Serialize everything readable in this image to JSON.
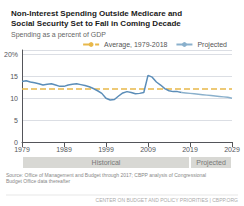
{
  "chart_data": {
    "type": "line",
    "title": "Non-Interest Spending Outside Medicare and\nSocial Security Set to Fall in Coming Decade",
    "subtitle": "Spending as a percent of GDP",
    "source": "Source: Office of Management and Budget through 2017; CBPP analysis of Congressional\nBudget Office data thereafter",
    "footer": "CENTER ON BUDGET AND POLICY PRIORITIES | CBPP.ORG",
    "series": [
      {
        "color": "#5b8db8",
        "x": [
          1979,
          1980,
          1981,
          1982,
          1983,
          1984,
          1985,
          1986,
          1987,
          1988,
          1989,
          1990,
          1991,
          1992,
          1993,
          1994,
          1995,
          1996,
          1997,
          1998,
          1999,
          2000,
          2001,
          2002,
          2003,
          2004,
          2005,
          2006,
          2007,
          2008,
          2009,
          2010,
          2011,
          2012,
          2013,
          2014,
          2015,
          2016,
          2017
        ],
        "values": [
          13.8,
          14.0,
          13.7,
          13.5,
          13.3,
          13.0,
          13.2,
          13.3,
          13.0,
          12.7,
          12.7,
          13.0,
          13.2,
          13.3,
          13.1,
          12.9,
          12.6,
          12.2,
          11.7,
          11.1,
          10.0,
          9.6,
          9.7,
          10.5,
          11.2,
          11.5,
          11.3,
          11.0,
          11.1,
          11.3,
          15.2,
          14.8,
          13.7,
          13.0,
          12.2,
          11.7,
          11.5,
          11.5,
          11.3
        ]
      },
      {
        "name": "Projected",
        "color": "#8ab0cc",
        "line_style": "solid",
        "x": [
          2017,
          2018,
          2019,
          2020,
          2021,
          2022,
          2023,
          2024,
          2025,
          2026,
          2027,
          2028,
          2029
        ],
        "values": [
          11.3,
          11.2,
          11.1,
          11.0,
          10.9,
          10.8,
          10.7,
          10.6,
          10.5,
          10.4,
          10.3,
          10.2,
          10.0
        ]
      }
    ],
    "average": {
      "name": "Average, 1979-2018",
      "value": 12.1,
      "color": "#e8b84a",
      "line_style": "dashed"
    },
    "bands": [
      {
        "label": "Historical",
        "from": 1979,
        "to": 2019,
        "color": "#d8d8d4"
      },
      {
        "label": "Projected",
        "from": 2019,
        "to": 2029,
        "color": "#d8d8d4"
      }
    ],
    "xlim": [
      1979,
      2029
    ],
    "xticks": [
      1979,
      1989,
      1999,
      2009,
      2019,
      2029
    ],
    "ylim": [
      0,
      21
    ],
    "yticks": [
      0,
      5,
      10,
      15,
      {
        "value": 20,
        "label": "20%"
      }
    ],
    "grid": true,
    "legend": "upper right"
  }
}
